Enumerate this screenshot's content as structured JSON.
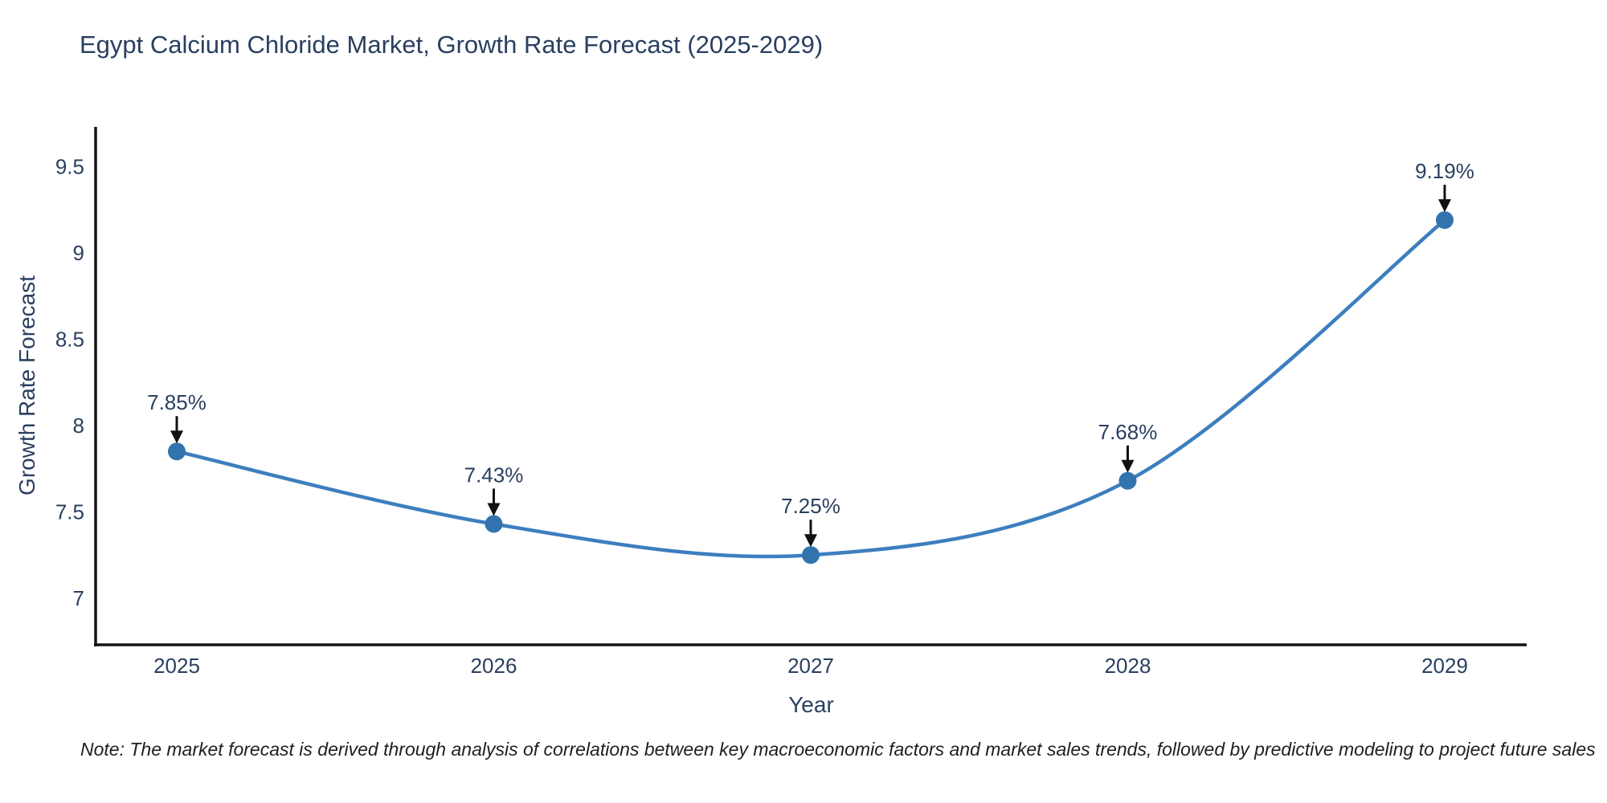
{
  "title": "Egypt Calcium Chloride Market, Growth Rate Forecast (2025-2029)",
  "note": "Note: The market forecast is derived through analysis of correlations between key macroeconomic factors and market sales trends, followed by predictive modeling to project future sales",
  "chart_data": {
    "type": "line",
    "title": "Egypt Calcium Chloride Market, Growth Rate Forecast (2025-2029)",
    "xlabel": "Year",
    "ylabel": "Growth Rate Forecast",
    "categories": [
      "2025",
      "2026",
      "2027",
      "2028",
      "2029"
    ],
    "values": [
      7.85,
      7.43,
      7.25,
      7.68,
      9.19
    ],
    "point_labels": [
      "7.85%",
      "7.43%",
      "7.25%",
      "7.68%",
      "9.19%"
    ],
    "y_ticks": [
      7,
      7.5,
      8,
      8.5,
      9,
      9.5
    ],
    "y_tick_labels": [
      "7",
      "7.5",
      "8",
      "8.5",
      "9",
      "9.5"
    ],
    "ylim": [
      6.73,
      9.73
    ],
    "grid": false,
    "legend_position": "none",
    "line_shape": "spline",
    "colors": {
      "line": "#3d7ebf",
      "marker": "#3273ae",
      "axis": "#141414",
      "arrow": "#111111",
      "text": "#2a3f5f"
    }
  }
}
